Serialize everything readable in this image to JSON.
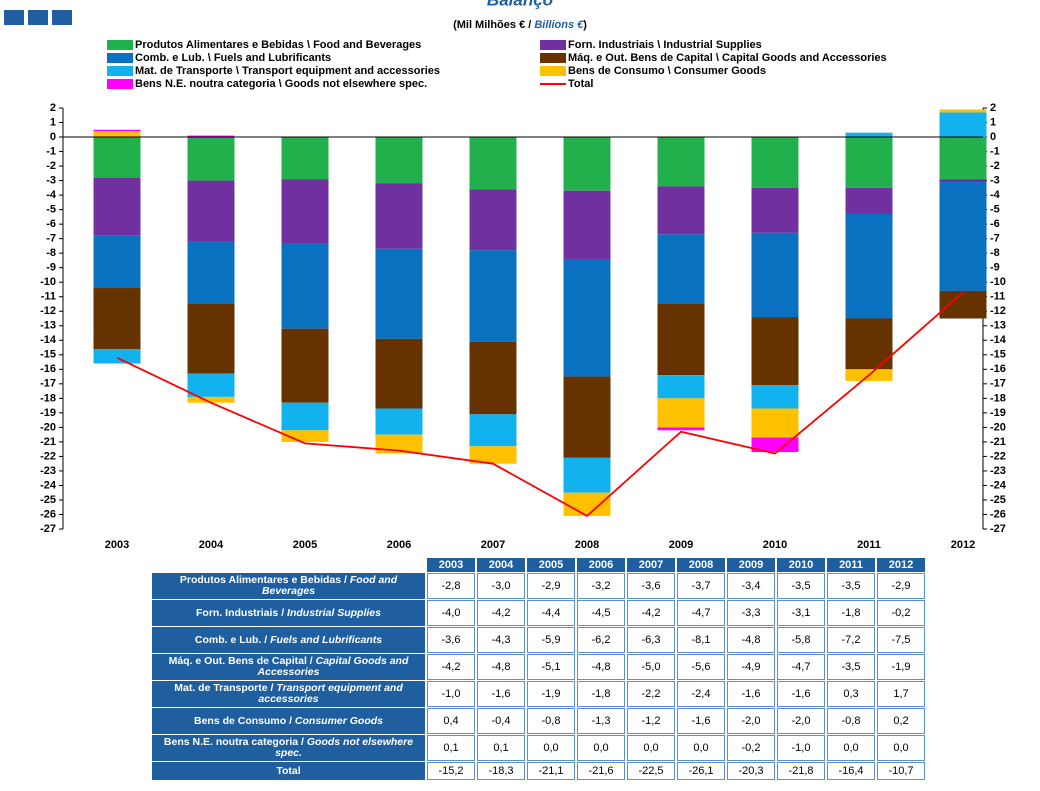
{
  "chart_data": {
    "type": "bar",
    "title": "Balanço",
    "subtitle": [
      "(Mil Milhões € / ",
      "Billions €",
      ")"
    ],
    "categories": [
      "2003",
      "2004",
      "2005",
      "2006",
      "2007",
      "2008",
      "2009",
      "2010",
      "2011",
      "2012"
    ],
    "ylim": [
      -27,
      2
    ],
    "yticks": [
      2,
      1,
      0,
      -1,
      -2,
      -3,
      -4,
      -5,
      -6,
      -7,
      -8,
      -9,
      -10,
      -11,
      -12,
      -13,
      -14,
      -15,
      -16,
      -17,
      -18,
      -19,
      -20,
      -21,
      -22,
      -23,
      -24,
      -25,
      -26,
      -27
    ],
    "stacked": true,
    "series": [
      {
        "name": "Produtos Alimentares e Bebidas \\ Food and Beverages",
        "color": "#21b04b",
        "values": [
          -2.8,
          -3.0,
          -2.9,
          -3.2,
          -3.6,
          -3.7,
          -3.4,
          -3.5,
          -3.5,
          -2.9
        ],
        "value_labels": [
          "-2,8",
          "-3,0",
          "-2,9",
          "-3,2",
          "-3,6",
          "-3,7",
          "-3,4",
          "-3,5",
          "-3,5",
          "-2,9"
        ]
      },
      {
        "name": "Forn. Industriais \\ Industrial Supplies",
        "color": "#7030a0",
        "values": [
          -4.0,
          -4.2,
          -4.4,
          -4.5,
          -4.2,
          -4.7,
          -3.3,
          -3.1,
          -1.8,
          -0.2
        ],
        "value_labels": [
          "-4,0",
          "-4,2",
          "-4,4",
          "-4,5",
          "-4,2",
          "-4,7",
          "-3,3",
          "-3,1",
          "-1,8",
          "-0,2"
        ]
      },
      {
        "name": "Comb. e Lub. \\ Fuels and Lubrificants",
        "color": "#0a70c0",
        "values": [
          -3.6,
          -4.3,
          -5.9,
          -6.2,
          -6.3,
          -8.1,
          -4.8,
          -5.8,
          -7.2,
          -7.5
        ],
        "value_labels": [
          "-3,6",
          "-4,3",
          "-5,9",
          "-6,2",
          "-6,3",
          "-8,1",
          "-4,8",
          "-5,8",
          "-7,2",
          "-7,5"
        ]
      },
      {
        "name": "Máq. e Out. Bens de Capital \\ Capital Goods and Accessories",
        "color": "#663300",
        "values": [
          -4.2,
          -4.8,
          -5.1,
          -4.8,
          -5.0,
          -5.6,
          -4.9,
          -4.7,
          -3.5,
          -1.9
        ],
        "value_labels": [
          "-4,2",
          "-4,8",
          "-5,1",
          "-4,8",
          "-5,0",
          "-5,6",
          "-4,9",
          "-4,7",
          "-3,5",
          "-1,9"
        ]
      },
      {
        "name": "Mat. de Transporte \\ Transport equipment and accessories",
        "color": "#12b2ee",
        "values": [
          -1.0,
          -1.6,
          -1.9,
          -1.8,
          -2.2,
          -2.4,
          -1.6,
          -1.6,
          0.3,
          1.7
        ],
        "value_labels": [
          "-1,0",
          "-1,6",
          "-1,9",
          "-1,8",
          "-2,2",
          "-2,4",
          "-1,6",
          "-1,6",
          "0,3",
          "1,7"
        ]
      },
      {
        "name": "Bens de Consumo \\ Consumer Goods",
        "color": "#ffc000",
        "values": [
          0.4,
          -0.4,
          -0.8,
          -1.3,
          -1.2,
          -1.6,
          -2.0,
          -2.0,
          -0.8,
          0.2
        ],
        "value_labels": [
          "0,4",
          "-0,4",
          "-0,8",
          "-1,3",
          "-1,2",
          "-1,6",
          "-2,0",
          "-2,0",
          "-0,8",
          "0,2"
        ]
      },
      {
        "name": "Bens N.E. noutra categoria \\ Goods not elsewhere spec.",
        "color": "#ff00ff",
        "values": [
          0.1,
          0.1,
          0.0,
          0.0,
          0.0,
          0.0,
          -0.2,
          -1.0,
          0.0,
          0.0
        ],
        "value_labels": [
          "0,1",
          "0,1",
          "0,0",
          "0,0",
          "0,0",
          "0,0",
          "-0,2",
          "-1,0",
          "0,0",
          "0,0"
        ]
      },
      {
        "name": "Total",
        "type": "line",
        "color": "#ff0000",
        "values": [
          -15.2,
          -18.3,
          -21.1,
          -21.6,
          -22.5,
          -26.1,
          -20.3,
          -21.8,
          -16.4,
          -10.7
        ],
        "value_labels": [
          "-15,2",
          "-18,3",
          "-21,1",
          "-21,6",
          "-22,5",
          "-26,1",
          "-20,3",
          "-21,8",
          "-16,4",
          "-10,7"
        ]
      }
    ],
    "table": {
      "row_labels": [
        [
          "Produtos Alimentares e Bebidas /",
          "Food and Beverages"
        ],
        [
          "Forn. Industriais /",
          "Industrial Supplies"
        ],
        [
          "Comb. e Lub. /",
          "Fuels and Lubrificants"
        ],
        [
          "Máq. e Out. Bens de Capital /",
          "Capital Goods and Accessories"
        ],
        [
          "Mat. de Transporte /",
          "Transport equipment and accessories"
        ],
        [
          "Bens de Consumo /",
          "Consumer Goods"
        ],
        [
          "Bens N.E. noutra categoria /",
          "Goods not elsewhere spec."
        ]
      ]
    }
  }
}
